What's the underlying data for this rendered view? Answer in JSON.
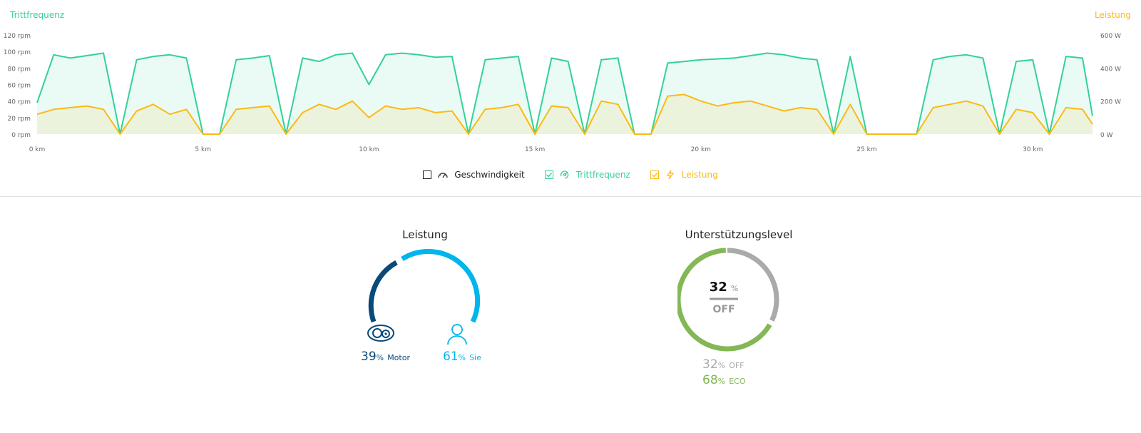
{
  "chart": {
    "left_title": "Trittfrequenz",
    "right_title": "Leistung",
    "y_left_ticks": [
      "0 rpm",
      "20 rpm",
      "40 rpm",
      "60 rpm",
      "80 rpm",
      "100 rpm",
      "120 rpm"
    ],
    "y_right_ticks": [
      "0 W",
      "200 W",
      "400 W",
      "600 W"
    ],
    "x_ticks": [
      "0 km",
      "5 km",
      "10 km",
      "15 km",
      "20 km",
      "25 km",
      "30 km"
    ],
    "colors": {
      "cadence": "#32d296",
      "power": "#fdb913"
    }
  },
  "chart_data": {
    "type": "line",
    "x_unit": "km",
    "x_range": [
      0,
      31.8
    ],
    "y_left_range": [
      0,
      120
    ],
    "y_right_range": [
      0,
      600
    ],
    "series": [
      {
        "name": "Trittfrequenz",
        "axis": "left",
        "x": [
          0,
          0.5,
          1,
          1.5,
          2,
          2.5,
          3,
          3.5,
          4,
          4.5,
          5,
          5.5,
          6,
          6.5,
          7,
          7.5,
          8,
          8.5,
          9,
          9.5,
          10,
          10.5,
          11,
          11.5,
          12,
          12.5,
          13,
          13.5,
          14,
          14.5,
          15,
          15.5,
          16,
          16.5,
          17,
          17.5,
          18,
          18.5,
          19,
          19.5,
          20,
          20.5,
          21,
          21.5,
          22,
          22.5,
          23,
          23.5,
          24,
          24.5,
          25,
          25.5,
          26,
          26.5,
          27,
          27.5,
          28,
          28.5,
          29,
          29.5,
          30,
          30.5,
          31,
          31.5,
          31.8
        ],
        "values": [
          38,
          96,
          92,
          95,
          98,
          0,
          90,
          94,
          96,
          92,
          0,
          0,
          90,
          92,
          95,
          0,
          92,
          88,
          96,
          98,
          60,
          96,
          98,
          96,
          93,
          94,
          0,
          90,
          92,
          94,
          0,
          92,
          88,
          0,
          90,
          92,
          0,
          0,
          86,
          88,
          90,
          91,
          92,
          95,
          98,
          96,
          92,
          90,
          0,
          94,
          0,
          0,
          0,
          0,
          90,
          94,
          96,
          92,
          0,
          88,
          90,
          0,
          94,
          92,
          22
        ]
      },
      {
        "name": "Leistung",
        "axis": "right",
        "x": [
          0,
          0.5,
          1,
          1.5,
          2,
          2.5,
          3,
          3.5,
          4,
          4.5,
          5,
          5.5,
          6,
          6.5,
          7,
          7.5,
          8,
          8.5,
          9,
          9.5,
          10,
          10.5,
          11,
          11.5,
          12,
          12.5,
          13,
          13.5,
          14,
          14.5,
          15,
          15.5,
          16,
          16.5,
          17,
          17.5,
          18,
          18.5,
          19,
          19.5,
          20,
          20.5,
          21,
          21.5,
          22,
          22.5,
          23,
          23.5,
          24,
          24.5,
          25,
          25.5,
          26,
          26.5,
          27,
          27.5,
          28,
          28.5,
          29,
          29.5,
          30,
          30.5,
          31,
          31.5,
          31.8
        ],
        "values": [
          120,
          150,
          160,
          170,
          150,
          0,
          140,
          180,
          120,
          150,
          0,
          0,
          150,
          160,
          170,
          0,
          130,
          180,
          150,
          200,
          100,
          170,
          150,
          160,
          130,
          140,
          0,
          150,
          160,
          180,
          0,
          170,
          160,
          0,
          200,
          180,
          0,
          0,
          230,
          240,
          200,
          170,
          190,
          200,
          170,
          140,
          160,
          150,
          0,
          180,
          0,
          0,
          0,
          0,
          160,
          180,
          200,
          170,
          0,
          150,
          130,
          0,
          160,
          150,
          60
        ]
      }
    ]
  },
  "legend": [
    {
      "label": "Geschwindigkeit",
      "checked": false,
      "color": "#333333",
      "icon": "speedometer-icon"
    },
    {
      "label": "Trittfrequenz",
      "checked": true,
      "color": "#32d296",
      "icon": "cadence-icon"
    },
    {
      "label": "Leistung",
      "checked": true,
      "color": "#fdb913",
      "icon": "lightning-icon"
    }
  ],
  "power": {
    "title": "Leistung",
    "motor": {
      "value": 39,
      "unit": "%",
      "label": "Motor",
      "color": "#0a4a7a"
    },
    "rider": {
      "value": 61,
      "unit": "%",
      "label": "Sie",
      "color": "#00b4ec"
    }
  },
  "assist": {
    "title": "Unterstützungslevel",
    "center_value": "32",
    "center_unit": "%",
    "center_mode": "OFF",
    "levels": [
      {
        "value": 32,
        "unit": "%",
        "label": "OFF",
        "color": "#aaaaaa"
      },
      {
        "value": 68,
        "unit": "%",
        "label": "ECO",
        "color": "#84b755"
      }
    ]
  }
}
